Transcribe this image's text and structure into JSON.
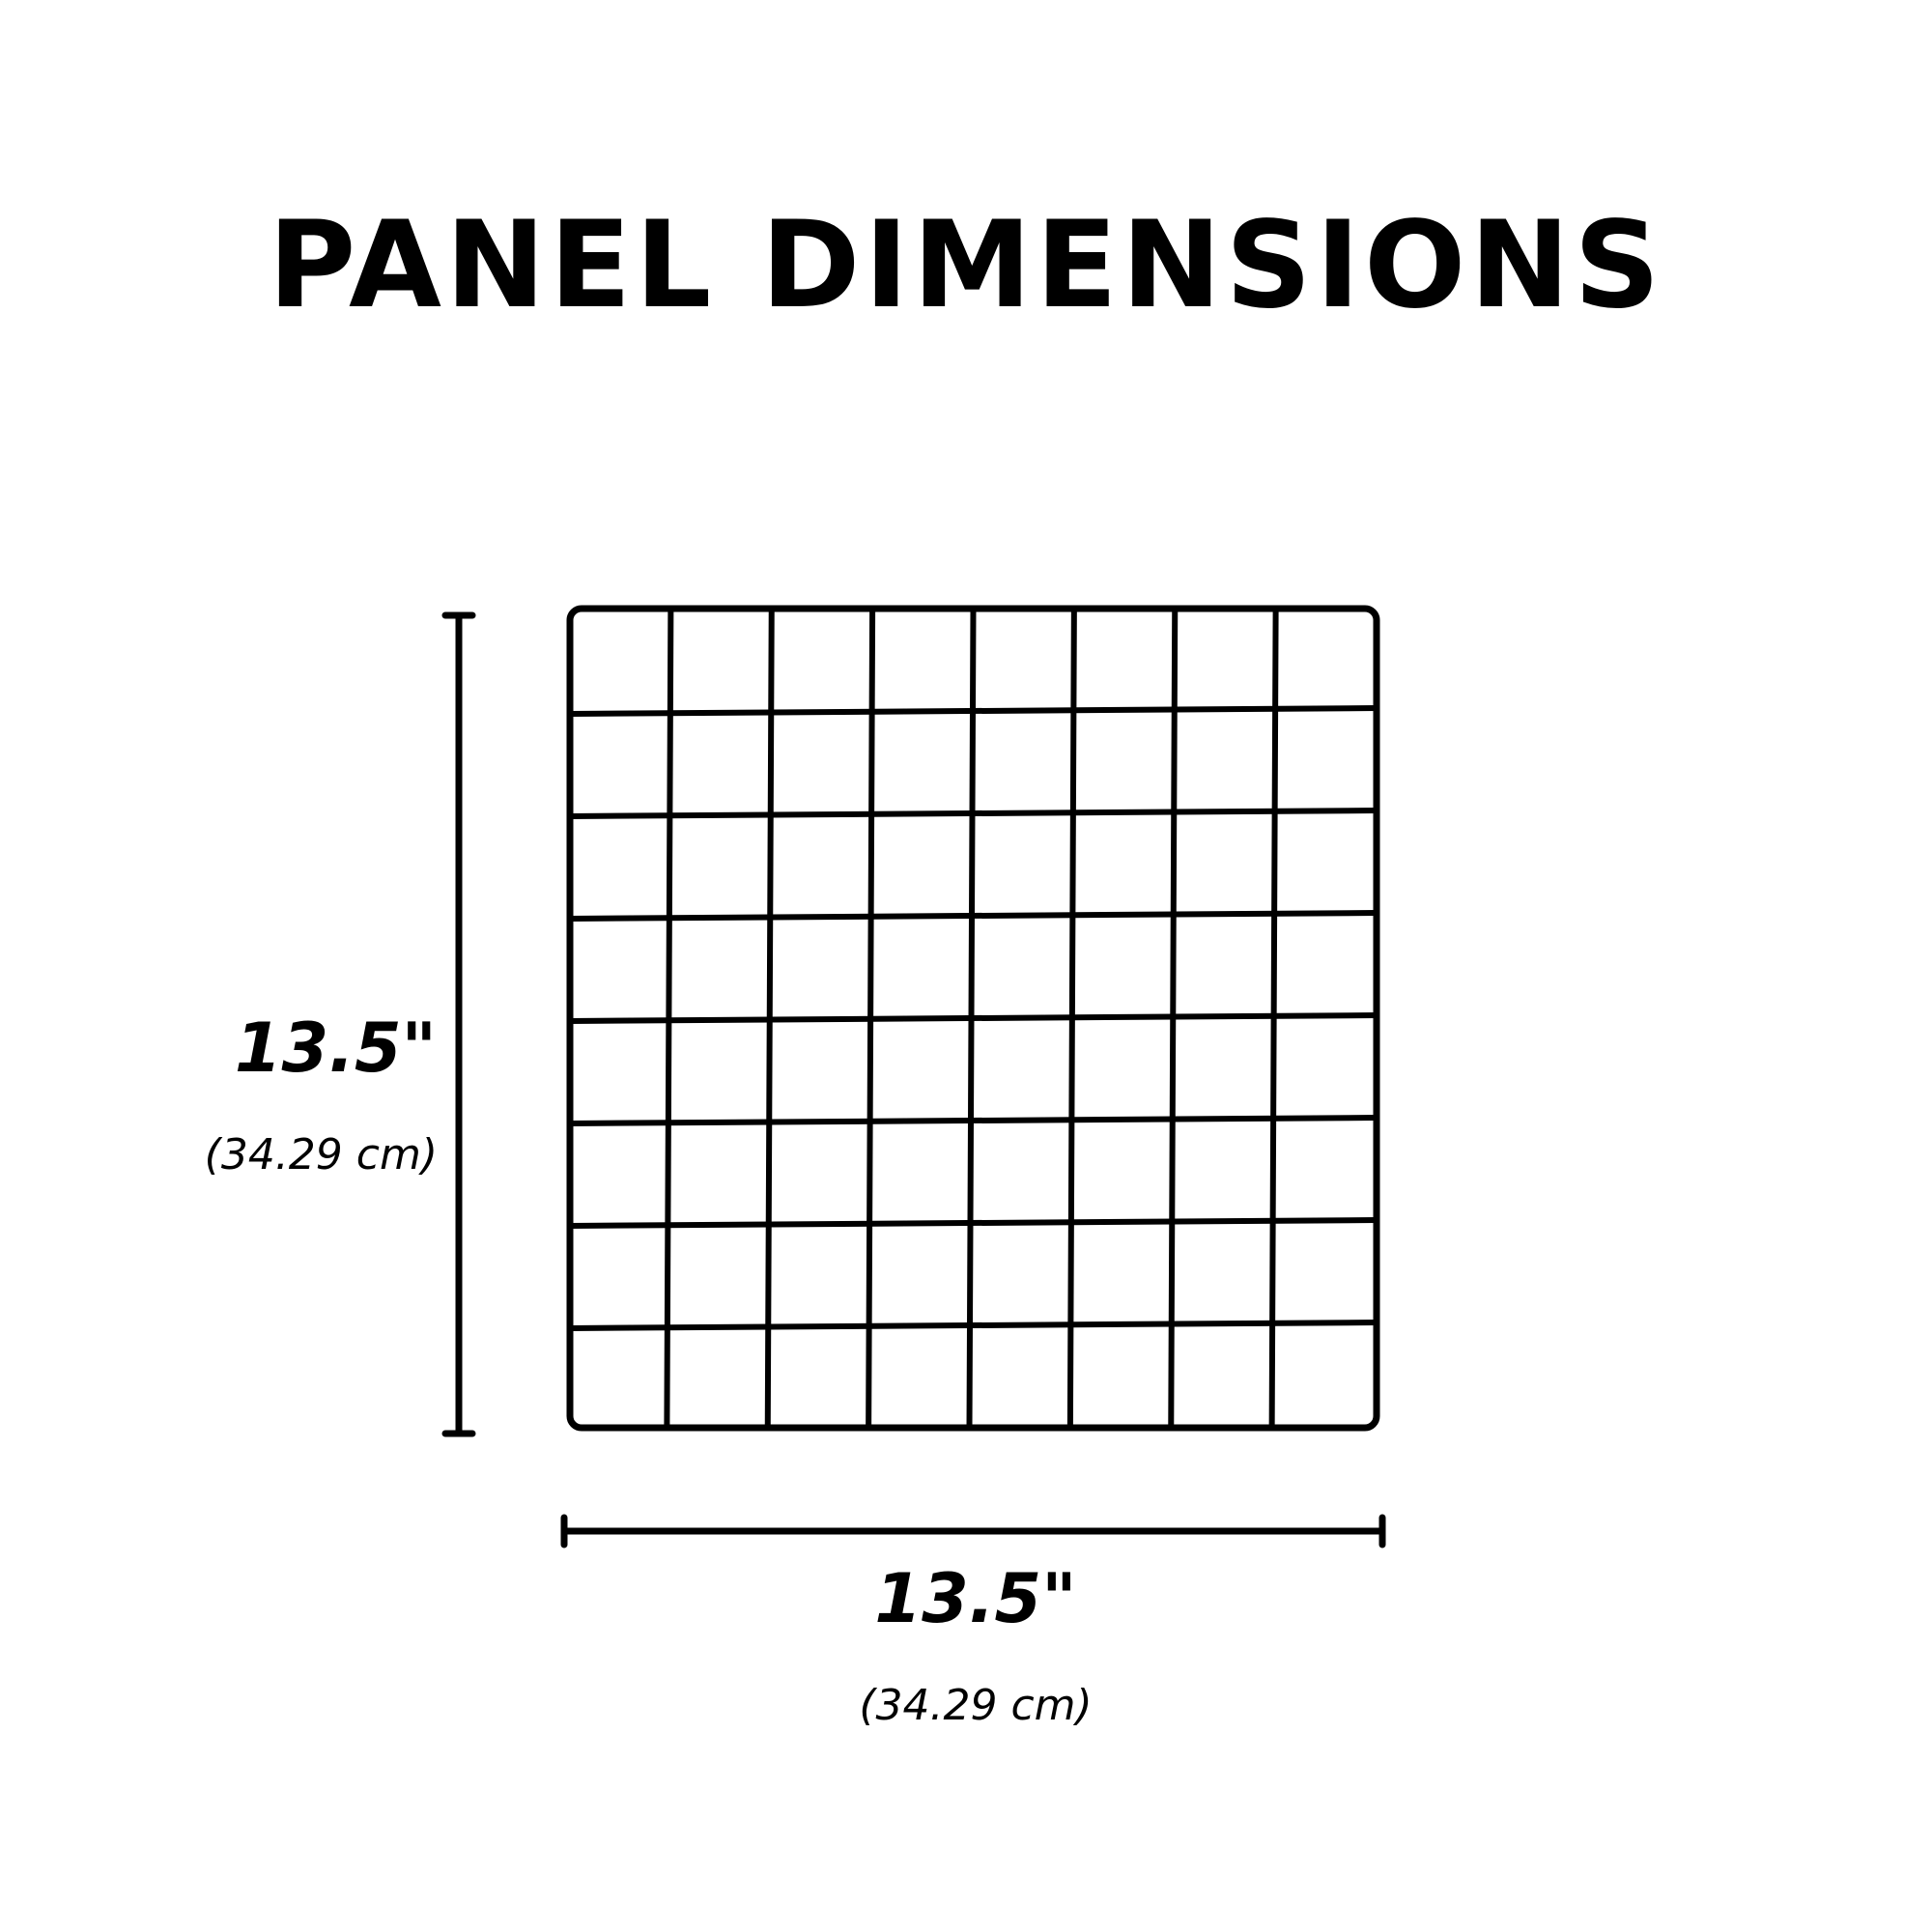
{
  "title": "PANEL DIMENSIONS",
  "height_dimension": {
    "imperial": "13.5\"",
    "metric": "(34.29 cm)"
  },
  "width_dimension": {
    "imperial": "13.5\"",
    "metric": "(34.29 cm)"
  },
  "panel": {
    "columns": 8,
    "rows": 8
  },
  "colors": {
    "line": "#000000",
    "background": "#ffffff"
  }
}
